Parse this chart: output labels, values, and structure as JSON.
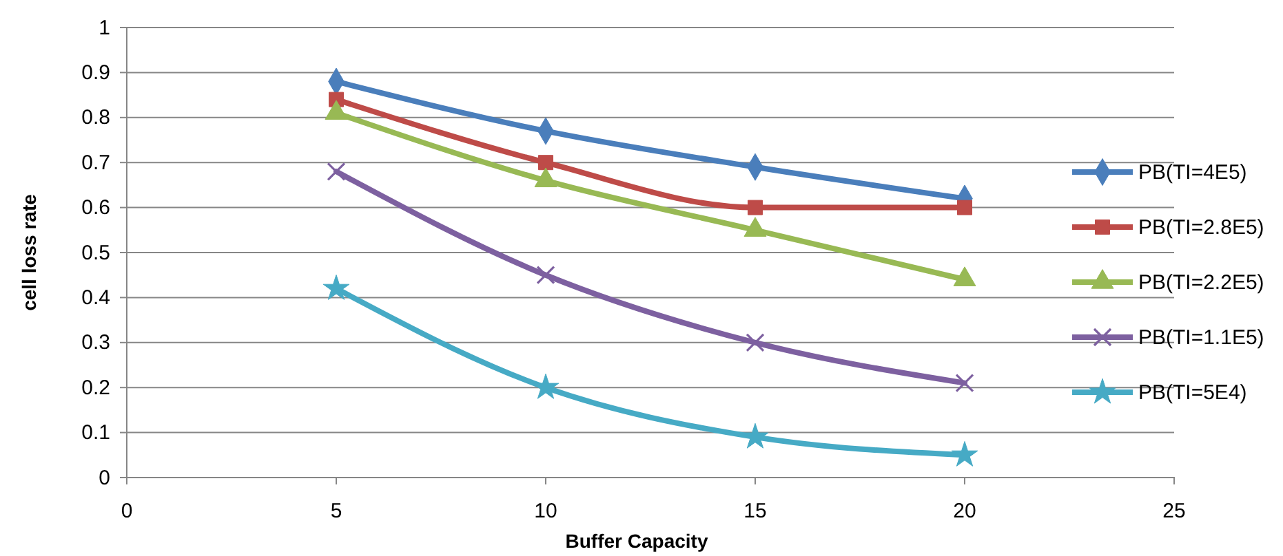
{
  "chart_data": {
    "type": "line",
    "xlabel": "Buffer Capacity",
    "ylabel": "cell loss rate",
    "x": [
      5,
      10,
      15,
      20
    ],
    "xlim": [
      0,
      25
    ],
    "xticks": [
      0,
      5,
      10,
      15,
      20,
      25
    ],
    "ylim": [
      0,
      1
    ],
    "yticks": [
      0,
      {
        "value": 0.1,
        "label": "0.1"
      },
      {
        "value": 0.2,
        "label": "0.2"
      },
      {
        "value": 0.3,
        "label": "0.3"
      },
      {
        "value": 0.4,
        "label": "0.4"
      },
      {
        "value": 0.5,
        "label": "0.5"
      },
      {
        "value": 0.6,
        "label": "0.6"
      },
      {
        "value": 0.7,
        "label": "0.7"
      },
      {
        "value": 0.8,
        "label": "0.8"
      },
      {
        "value": 0.9,
        "label": "0.9"
      },
      1
    ],
    "grid": "y",
    "legend": "right",
    "series": [
      {
        "name": "PB(TI=4E5)",
        "color": "#4a7ebb",
        "marker": "diamond",
        "values": [
          0.88,
          0.77,
          0.69,
          0.62
        ]
      },
      {
        "name": "PB(TI=2.8E5)",
        "color": "#be4b48",
        "marker": "square",
        "values": [
          0.84,
          0.7,
          0.6,
          0.6
        ]
      },
      {
        "name": "PB(TI=2.2E5)",
        "color": "#98b954",
        "marker": "triangle",
        "values": [
          0.81,
          0.66,
          0.55,
          0.44
        ]
      },
      {
        "name": "PB(TI=1.1E5)",
        "color": "#7d60a0",
        "marker": "cross",
        "values": [
          0.68,
          0.45,
          0.3,
          0.21
        ]
      },
      {
        "name": "PB(TI=5E4)",
        "color": "#46aac5",
        "marker": "star",
        "values": [
          0.42,
          0.2,
          0.09,
          0.05
        ]
      }
    ]
  }
}
